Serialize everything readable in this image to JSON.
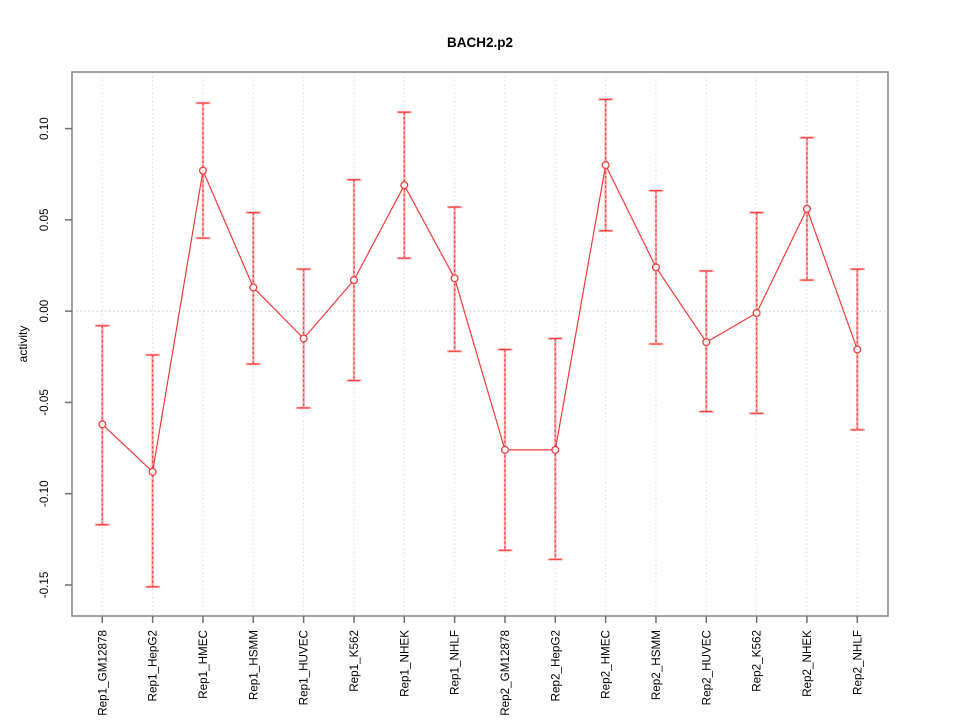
{
  "title": "BACH2.p2",
  "chart_data": {
    "type": "line",
    "title": "BACH2.p2",
    "xlabel": "",
    "ylabel": "activity",
    "categories": [
      "Rep1_GM12878",
      "Rep1_HepG2",
      "Rep1_HMEC",
      "Rep1_HSMM",
      "Rep1_HUVEC",
      "Rep1_K562",
      "Rep1_NHEK",
      "Rep1_NHLF",
      "Rep2_GM12878",
      "Rep2_HepG2",
      "Rep2_HMEC",
      "Rep2_HSMM",
      "Rep2_HUVEC",
      "Rep2_K562",
      "Rep2_NHEK",
      "Rep2_NHLF"
    ],
    "series": [
      {
        "name": "activity",
        "marker": "open-circle",
        "values": [
          -0.062,
          -0.088,
          0.077,
          0.013,
          -0.015,
          0.017,
          0.069,
          0.018,
          -0.076,
          -0.076,
          0.08,
          0.024,
          -0.017,
          -0.001,
          0.056,
          -0.021
        ],
        "ci_upper": [
          -0.008,
          -0.024,
          0.114,
          0.054,
          0.023,
          0.072,
          0.109,
          0.057,
          -0.021,
          -0.015,
          0.116,
          0.066,
          0.022,
          0.054,
          0.095,
          0.023
        ],
        "ci_lower": [
          -0.117,
          -0.151,
          0.04,
          -0.029,
          -0.053,
          -0.038,
          0.029,
          -0.022,
          -0.131,
          -0.136,
          0.044,
          -0.018,
          -0.055,
          -0.056,
          0.017,
          -0.065
        ]
      }
    ],
    "yticks": [
      0.1,
      0.05,
      0.0,
      -0.05,
      -0.1,
      -0.15
    ],
    "ytick_labels": [
      "0.10",
      "0.05",
      "0.00",
      "-0.05",
      "-0.10",
      "-0.15"
    ],
    "ylim": [
      -0.167,
      0.131
    ],
    "legend": "none",
    "grid": {
      "vertical_dotted_per_category": true,
      "horizontal_zero_line_dotted": true
    },
    "colors": {
      "series": "#f43b3b",
      "ci_band": "#ffabab",
      "grid": "#d9d9d9",
      "zero_line": "#c9c9c9",
      "frame": "#8a8a8a",
      "tick": "#6e6e6e",
      "text": "#000000"
    }
  }
}
